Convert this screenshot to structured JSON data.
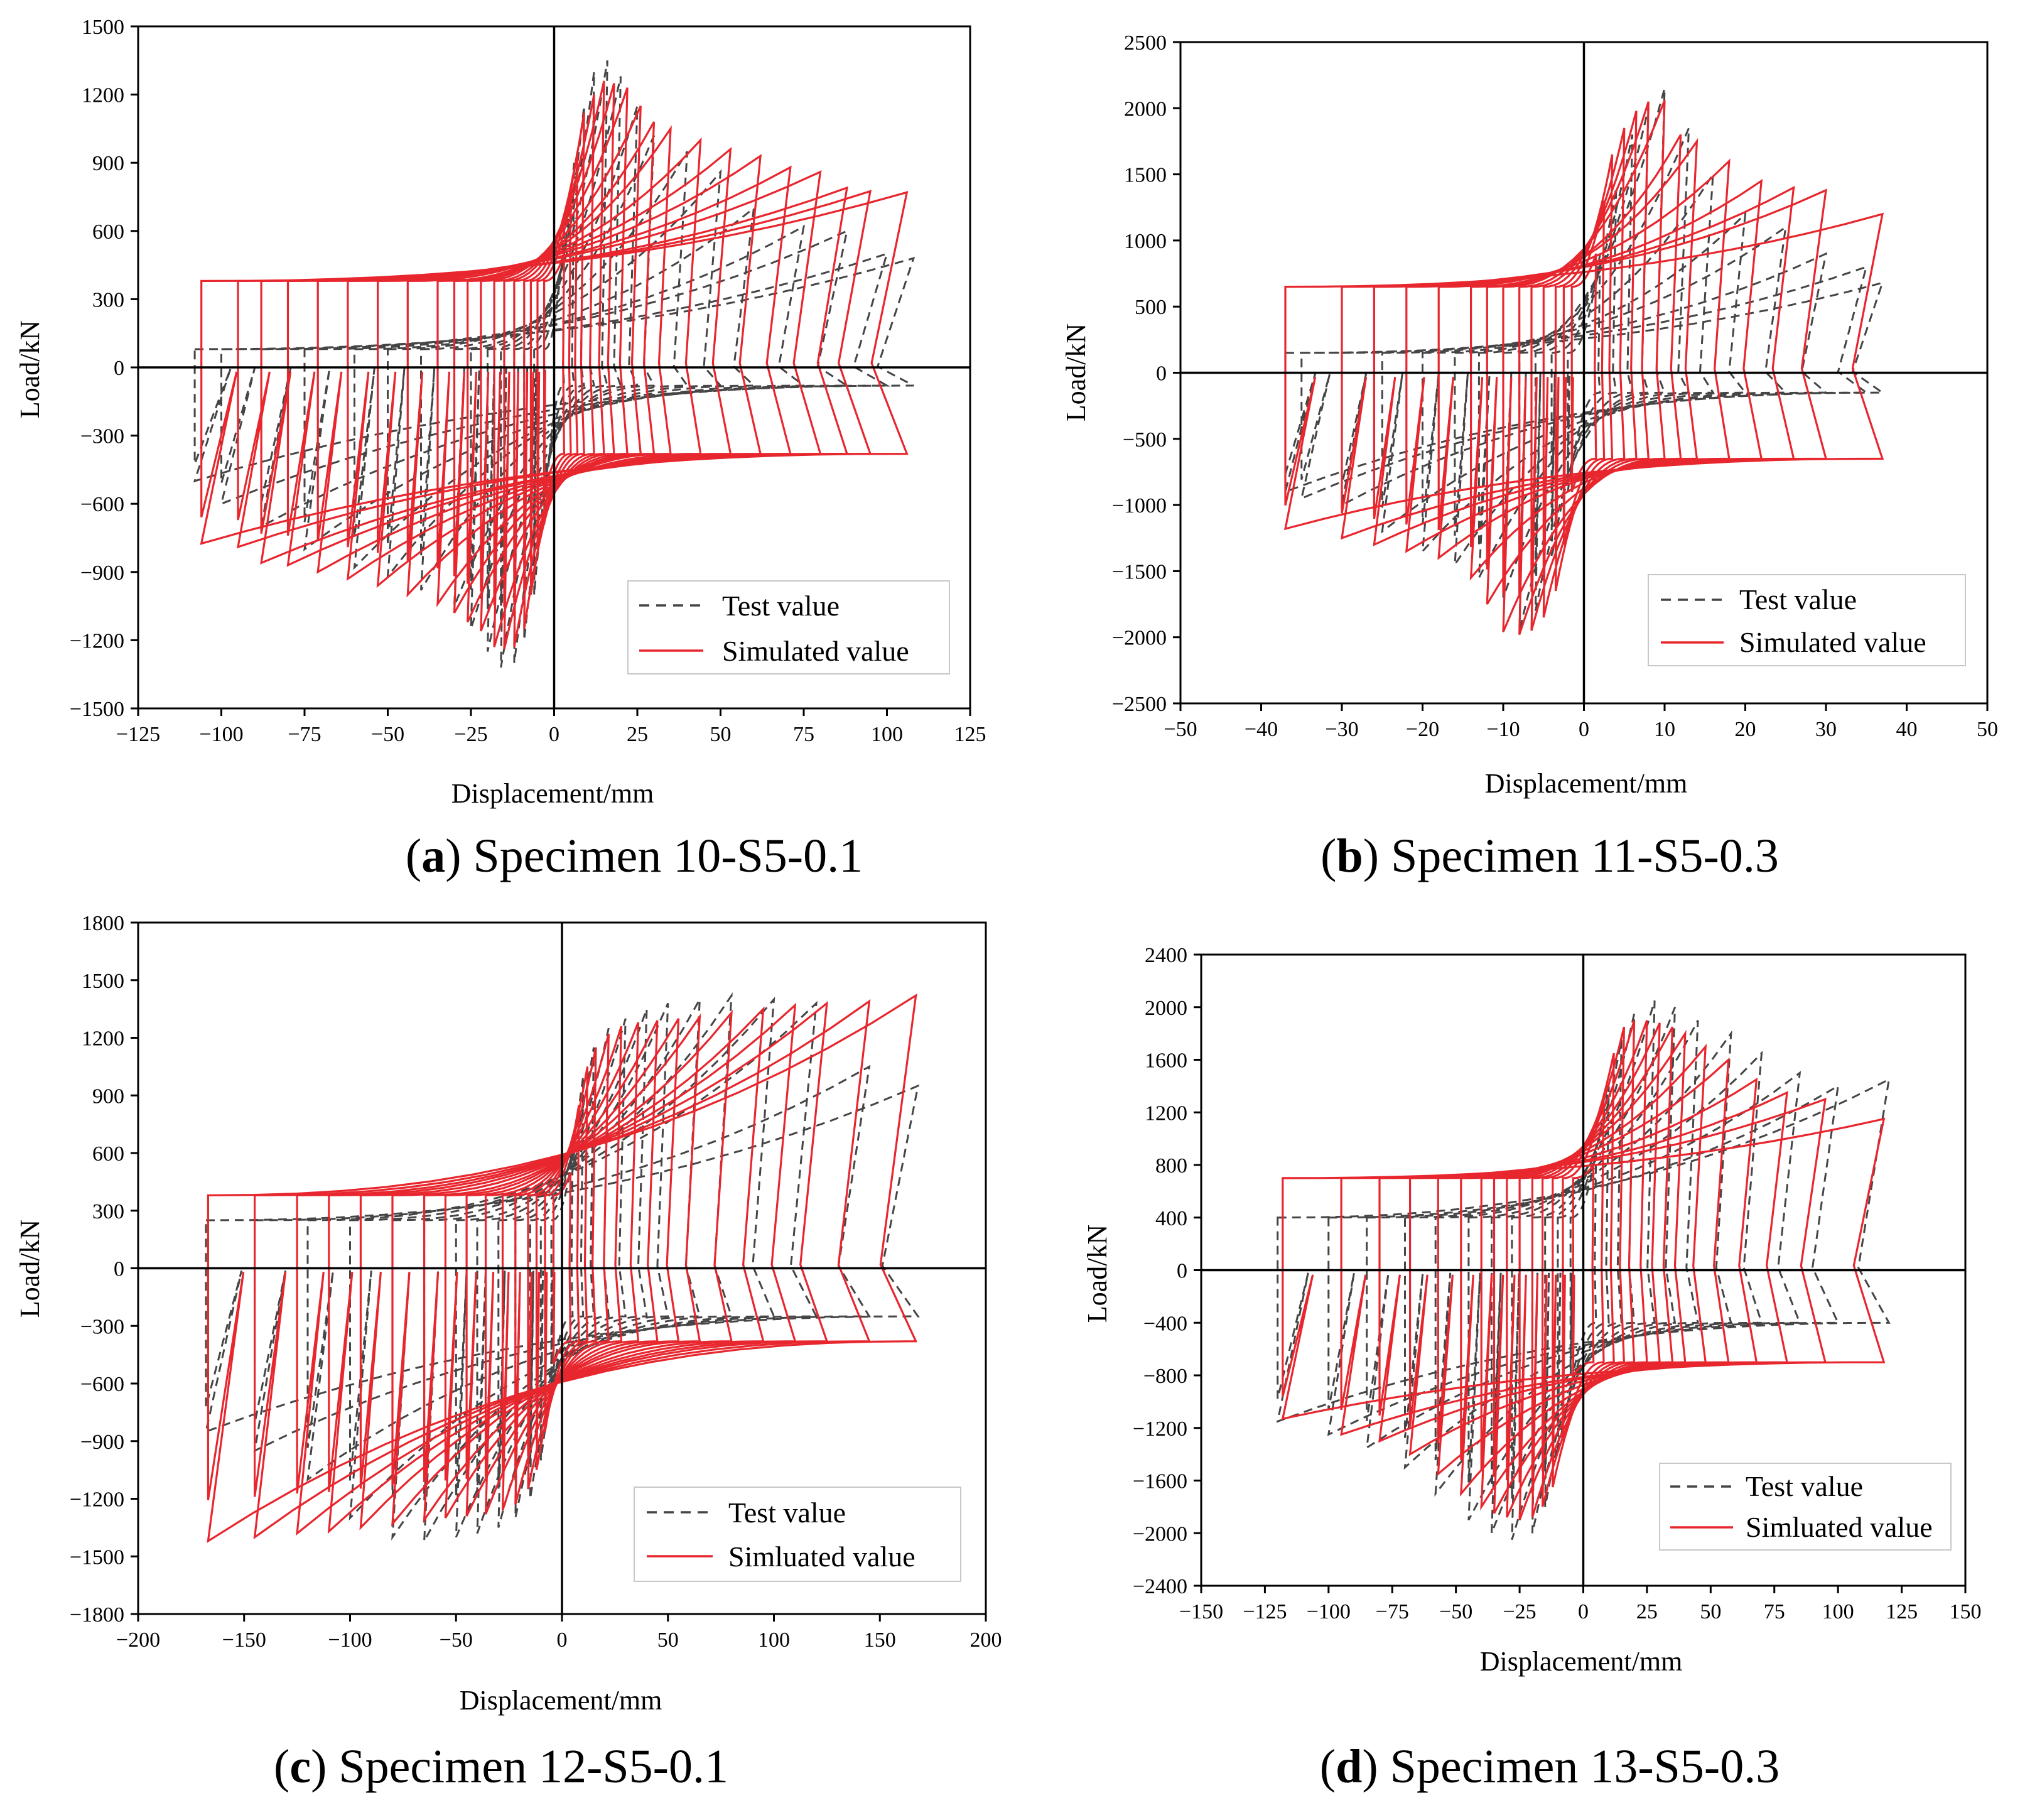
{
  "colors": {
    "test": "#454545",
    "simulated": "#e8262e",
    "axis": "#000000",
    "background": "#ffffff"
  },
  "chart_data": [
    {
      "id": "a",
      "type": "line",
      "caption": {
        "letter": "a",
        "text": "Specimen 10-S5-0.1"
      },
      "xlabel": "Displacement/mm",
      "ylabel": "Load/kN",
      "xlim": [
        -125,
        125
      ],
      "ylim": [
        -1500,
        1500
      ],
      "xticks": [
        -125,
        -100,
        -75,
        -50,
        -25,
        0,
        25,
        50,
        75,
        100,
        125
      ],
      "yticks": [
        -1500,
        -1200,
        -900,
        -600,
        -300,
        0,
        300,
        600,
        900,
        1200,
        1500
      ],
      "xtick_labels": [
        "−125",
        "−100",
        "−75",
        "−50",
        "−25",
        "0",
        "25",
        "50",
        "75",
        "100",
        "125"
      ],
      "ytick_labels": [
        "−1500",
        "−1200",
        "−900",
        "−600",
        "−300",
        "0",
        "300",
        "600",
        "900",
        "1200",
        "1500"
      ],
      "legend": {
        "position": "bottom-right",
        "entries": [
          "Test value",
          "Simulated value"
        ]
      },
      "simulated": {
        "name": "Simulated value",
        "amplitudes": [
          3,
          5,
          7,
          9,
          12,
          15,
          18,
          22,
          26,
          30,
          35,
          44,
          53,
          62,
          71,
          80,
          88,
          95,
          106
        ],
        "peaks_pos": [
          500,
          750,
          950,
          1120,
          1200,
          1260,
          1250,
          1230,
          1150,
          1080,
          1050,
          1000,
          960,
          930,
          880,
          860,
          790,
          775,
          770
        ],
        "peaks_neg": [
          -560,
          -800,
          -1000,
          -1150,
          -1230,
          -1240,
          -1230,
          -1160,
          -1120,
          -1080,
          -1040,
          -1000,
          -960,
          -930,
          -900,
          -870,
          -860,
          -790,
          -775
        ],
        "zero_crossing_load": 380
      },
      "test": {
        "name": "Test value",
        "amplitudes": [
          3,
          6,
          9,
          12,
          16,
          20,
          25,
          30,
          40,
          50,
          60,
          75,
          88,
          100,
          108
        ],
        "peaks_pos": [
          620,
          900,
          1150,
          1300,
          1350,
          1280,
          1150,
          1020,
          950,
          860,
          700,
          620,
          600,
          500,
          480
        ],
        "peaks_neg": [
          -700,
          -1000,
          -1200,
          -1300,
          -1320,
          -1250,
          -1150,
          -1050,
          -980,
          -920,
          -880,
          -800,
          -700,
          -600,
          -500
        ],
        "zero_crossing_load": 80
      }
    },
    {
      "id": "b",
      "type": "line",
      "caption": {
        "letter": "b",
        "text": "Specimen 11-S5-0.3"
      },
      "xlabel": "Displacement/mm",
      "ylabel": "Load/kN",
      "xlim": [
        -50,
        50
      ],
      "ylim": [
        -2500,
        2500
      ],
      "xticks": [
        -50,
        -40,
        -30,
        -20,
        -10,
        0,
        10,
        20,
        30,
        40,
        50
      ],
      "yticks": [
        -2500,
        -2000,
        -1500,
        -1000,
        -500,
        0,
        500,
        1000,
        1500,
        2000,
        2500
      ],
      "xtick_labels": [
        "−50",
        "−40",
        "−30",
        "−20",
        "−10",
        "0",
        "10",
        "20",
        "30",
        "40",
        "50"
      ],
      "ytick_labels": [
        "−2500",
        "−2000",
        "−1500",
        "−1000",
        "−500",
        "0",
        "500",
        "1000",
        "1500",
        "2000",
        "2500"
      ],
      "legend": {
        "position": "bottom-right",
        "entries": [
          "Test value",
          "Simulated value"
        ]
      },
      "simulated": {
        "name": "Simulated value",
        "amplitudes": [
          1.5,
          2.5,
          3.5,
          5,
          6.5,
          8,
          10,
          12,
          14,
          18,
          22,
          26,
          30,
          37
        ],
        "peaks_pos": [
          900,
          1300,
          1650,
          1850,
          1980,
          2050,
          2060,
          1800,
          1750,
          1600,
          1450,
          1400,
          1380,
          1200
        ],
        "peaks_neg": [
          -900,
          -1300,
          -1650,
          -1850,
          -1950,
          -1980,
          -1960,
          -1750,
          -1550,
          -1400,
          -1350,
          -1300,
          -1250,
          -1180
        ],
        "zero_crossing_load": 650
      },
      "test": {
        "name": "Test value",
        "amplitudes": [
          2,
          4,
          6,
          8,
          10,
          13,
          16,
          20,
          25,
          30,
          35,
          37
        ],
        "peaks_pos": [
          900,
          1400,
          1800,
          2000,
          2150,
          1850,
          1500,
          1200,
          1100,
          900,
          800,
          680
        ],
        "peaks_neg": [
          -900,
          -1400,
          -1800,
          -1950,
          -1700,
          -1550,
          -1450,
          -1350,
          -1200,
          -1000,
          -950,
          -900
        ],
        "zero_crossing_load": 150
      }
    },
    {
      "id": "c",
      "type": "line",
      "caption": {
        "letter": "c",
        "text": "Specimen 12-S5-0.1"
      },
      "xlabel": "Displacement/mm",
      "ylabel": "Load/kN",
      "xlim": [
        -200,
        200
      ],
      "ylim": [
        -1800,
        1800
      ],
      "xticks": [
        -200,
        -150,
        -100,
        -50,
        0,
        50,
        100,
        150,
        200
      ],
      "yticks": [
        -1800,
        -1500,
        -1200,
        -900,
        -600,
        -300,
        0,
        300,
        600,
        900,
        1200,
        1500,
        1800
      ],
      "xtick_labels": [
        "−200",
        "−150",
        "−100",
        "−50",
        "0",
        "50",
        "100",
        "150",
        "200"
      ],
      "ytick_labels": [
        "−1800",
        "−1500",
        "−1200",
        "−900",
        "−600",
        "−300",
        "0",
        "300",
        "600",
        "900",
        "1200",
        "1500",
        "1800"
      ],
      "legend": {
        "position": "bottom-right",
        "entries": [
          "Test value",
          "Simluated value"
        ]
      },
      "simulated": {
        "name": "Simluated value",
        "amplitudes": [
          4,
          8,
          12,
          16,
          22,
          28,
          36,
          45,
          55,
          65,
          80,
          95,
          110,
          125,
          145,
          167
        ],
        "peaks_pos": [
          500,
          850,
          1050,
          1150,
          1220,
          1260,
          1280,
          1290,
          1300,
          1310,
          1330,
          1350,
          1370,
          1380,
          1390,
          1420
        ],
        "peaks_neg": [
          -500,
          -850,
          -1050,
          -1150,
          -1230,
          -1260,
          -1280,
          -1290,
          -1300,
          -1310,
          -1330,
          -1350,
          -1370,
          -1380,
          -1400,
          -1420
        ],
        "zero_crossing_load": 380
      },
      "test": {
        "name": "Test value",
        "amplitudes": [
          5,
          10,
          15,
          22,
          30,
          40,
          50,
          65,
          80,
          100,
          120,
          145,
          168
        ],
        "peaks_pos": [
          600,
          1000,
          1150,
          1250,
          1300,
          1350,
          1380,
          1400,
          1420,
          1400,
          1380,
          1050,
          950
        ],
        "peaks_neg": [
          -600,
          -1000,
          -1200,
          -1300,
          -1350,
          -1380,
          -1400,
          -1420,
          -1400,
          -1300,
          -1100,
          -950,
          -850
        ],
        "zero_crossing_load": 250
      }
    },
    {
      "id": "d",
      "type": "line",
      "caption": {
        "letter": "d",
        "text": "Specimen 13-S5-0.3"
      },
      "xlabel": "Displacement/mm",
      "ylabel": "Load/kN",
      "xlim": [
        -150,
        150
      ],
      "ylim": [
        -2400,
        2400
      ],
      "xticks": [
        -150,
        -125,
        -100,
        -75,
        -50,
        -25,
        0,
        25,
        50,
        75,
        100,
        125,
        150
      ],
      "yticks": [
        -2400,
        -2000,
        -1600,
        -1200,
        -800,
        -400,
        0,
        400,
        800,
        1200,
        1600,
        2000,
        2400
      ],
      "xtick_labels": [
        "−150",
        "−125",
        "−100",
        "−75",
        "−50",
        "−25",
        "0",
        "25",
        "50",
        "75",
        "100",
        "125",
        "150"
      ],
      "ytick_labels": [
        "−2400",
        "−2000",
        "−1600",
        "−1200",
        "−800",
        "−400",
        "0",
        "400",
        "800",
        "1200",
        "1600",
        "2000",
        "2400"
      ],
      "legend": {
        "position": "bottom-right",
        "entries": [
          "Test value",
          "Simluated value"
        ]
      },
      "simulated": {
        "name": "Simluated value",
        "amplitudes": [
          4,
          8,
          12,
          16,
          20,
          25,
          30,
          35,
          40,
          48,
          57,
          68,
          80,
          95,
          118
        ],
        "peaks_pos": [
          800,
          1300,
          1650,
          1850,
          1900,
          1900,
          1880,
          1850,
          1800,
          1700,
          1600,
          1450,
          1350,
          1300,
          1150
        ],
        "peaks_neg": [
          -800,
          -1300,
          -1650,
          -1800,
          -1880,
          -1900,
          -1880,
          -1850,
          -1800,
          -1700,
          -1550,
          -1400,
          -1300,
          -1250,
          -1130
        ],
        "zero_crossing_load": 700
      },
      "test": {
        "name": "Test value",
        "amplitudes": [
          5,
          10,
          15,
          20,
          28,
          36,
          45,
          58,
          70,
          85,
          100,
          120
        ],
        "peaks_pos": [
          900,
          1400,
          1750,
          1950,
          2050,
          2000,
          1900,
          1800,
          1650,
          1500,
          1400,
          1450
        ],
        "peaks_neg": [
          -900,
          -1400,
          -1800,
          -2000,
          -2050,
          -2000,
          -1900,
          -1700,
          -1500,
          -1350,
          -1250,
          -1150
        ],
        "zero_crossing_load": 400
      }
    }
  ]
}
